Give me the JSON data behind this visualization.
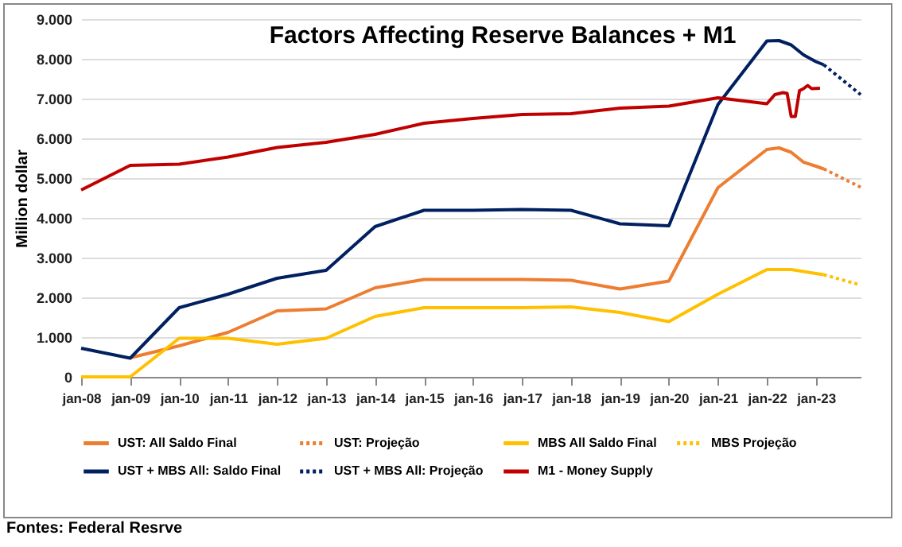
{
  "chart_data": {
    "type": "line",
    "title": "Factors Affecting Reserve Balances + M1",
    "ylabel": "Million dollar",
    "xlim": [
      "2008-01",
      "2023-12"
    ],
    "xticks": [
      {
        "value": "2008-01",
        "label": "jan-08"
      },
      {
        "value": "2009-01",
        "label": "jan-09"
      },
      {
        "value": "2010-01",
        "label": "jan-10"
      },
      {
        "value": "2011-01",
        "label": "jan-11"
      },
      {
        "value": "2012-01",
        "label": "jan-12"
      },
      {
        "value": "2013-01",
        "label": "jan-13"
      },
      {
        "value": "2014-01",
        "label": "jan-14"
      },
      {
        "value": "2015-01",
        "label": "jan-15"
      },
      {
        "value": "2016-01",
        "label": "jan-16"
      },
      {
        "value": "2017-01",
        "label": "jan-17"
      },
      {
        "value": "2018-01",
        "label": "jan-18"
      },
      {
        "value": "2019-01",
        "label": "jan-19"
      },
      {
        "value": "2020-01",
        "label": "jan-20"
      },
      {
        "value": "2021-01",
        "label": "jan-21"
      },
      {
        "value": "2022-01",
        "label": "jan-22"
      },
      {
        "value": "2023-01",
        "label": "jan-23"
      }
    ],
    "ylim": [
      0,
      9000
    ],
    "yticks": [
      {
        "value": 0,
        "label": "0"
      },
      {
        "value": 1000,
        "label": "1.000"
      },
      {
        "value": 2000,
        "label": "2.000"
      },
      {
        "value": 3000,
        "label": "3.000"
      },
      {
        "value": 4000,
        "label": "4.000"
      },
      {
        "value": 5000,
        "label": "5.000"
      },
      {
        "value": 6000,
        "label": "6.000"
      },
      {
        "value": 7000,
        "label": "7.000"
      },
      {
        "value": 8000,
        "label": "8.000"
      },
      {
        "value": 9000,
        "label": "9.000"
      }
    ],
    "grid": "y",
    "legend": "bottom",
    "marker": "none",
    "annotations": [
      "Fontes: Federal Resrve"
    ],
    "series": [
      {
        "name": "UST: All Saldo Final",
        "color": "#ed7d31",
        "line_style": "solid",
        "x": [
          "2009-01",
          "2010-01",
          "2011-01",
          "2012-01",
          "2013-01",
          "2014-01",
          "2015-01",
          "2016-01",
          "2017-01",
          "2018-01",
          "2019-01",
          "2020-01",
          "2021-01",
          "2022-01",
          "2022-04",
          "2022-07",
          "2022-10",
          "2023-01",
          "2023-03"
        ],
        "values": [
          480,
          780,
          1120,
          1660,
          1710,
          2240,
          2450,
          2450,
          2450,
          2430,
          2210,
          2410,
          4760,
          5720,
          5760,
          5650,
          5400,
          5300,
          5230
        ]
      },
      {
        "name": "UST: Projeção",
        "color": "#ed7d31",
        "line_style": "dotted",
        "x": [
          "2023-03",
          "2023-12"
        ],
        "values": [
          5230,
          4770
        ]
      },
      {
        "name": "MBS All Saldo Final",
        "color": "#ffc000",
        "line_style": "solid",
        "x": [
          "2008-01",
          "2009-01",
          "2010-01",
          "2011-01",
          "2012-01",
          "2013-01",
          "2014-01",
          "2015-01",
          "2016-01",
          "2017-01",
          "2018-01",
          "2019-01",
          "2020-01",
          "2021-01",
          "2022-01",
          "2022-07",
          "2023-01",
          "2023-03"
        ],
        "values": [
          0,
          0,
          970,
          970,
          820,
          970,
          1520,
          1740,
          1740,
          1740,
          1760,
          1620,
          1390,
          2080,
          2700,
          2700,
          2600,
          2570
        ]
      },
      {
        "name": "MBS Projeção",
        "color": "#ffc000",
        "line_style": "dotted",
        "x": [
          "2023-03",
          "2023-12"
        ],
        "values": [
          2570,
          2310
        ]
      },
      {
        "name": "UST + MBS All: Saldo Final",
        "color": "#002060",
        "line_style": "solid",
        "x": [
          "2008-01",
          "2009-01",
          "2010-01",
          "2011-01",
          "2012-01",
          "2013-01",
          "2014-01",
          "2015-01",
          "2016-01",
          "2017-01",
          "2018-01",
          "2019-01",
          "2020-01",
          "2021-01",
          "2022-01",
          "2022-04",
          "2022-07",
          "2022-10",
          "2023-01",
          "2023-03"
        ],
        "values": [
          720,
          470,
          1740,
          2080,
          2480,
          2680,
          3780,
          4190,
          4190,
          4210,
          4190,
          3850,
          3800,
          6850,
          8450,
          8460,
          8350,
          8100,
          7930,
          7850
        ]
      },
      {
        "name": "UST + MBS All: Projeção",
        "color": "#002060",
        "line_style": "dotted",
        "x": [
          "2023-03",
          "2023-12"
        ],
        "values": [
          7850,
          7100
        ]
      },
      {
        "name": "M1 - Money Supply",
        "color": "#c00000",
        "line_style": "solid",
        "x": [
          "2008-01",
          "2009-01",
          "2010-01",
          "2011-01",
          "2012-01",
          "2013-01",
          "2014-01",
          "2015-01",
          "2016-01",
          "2017-01",
          "2018-01",
          "2019-01",
          "2020-01",
          "2021-01",
          "2022-01",
          "2022-03",
          "2022-05",
          "2022-06",
          "2022-07",
          "2022-08",
          "2022-09",
          "2022-10",
          "2022-11",
          "2022-12",
          "2023-02"
        ],
        "values": [
          4700,
          5320,
          5350,
          5530,
          5770,
          5900,
          6100,
          6380,
          6500,
          6600,
          6620,
          6760,
          6810,
          7020,
          6870,
          7100,
          7150,
          7130,
          6550,
          6550,
          7200,
          7250,
          7330,
          7250,
          7260
        ]
      }
    ]
  }
}
